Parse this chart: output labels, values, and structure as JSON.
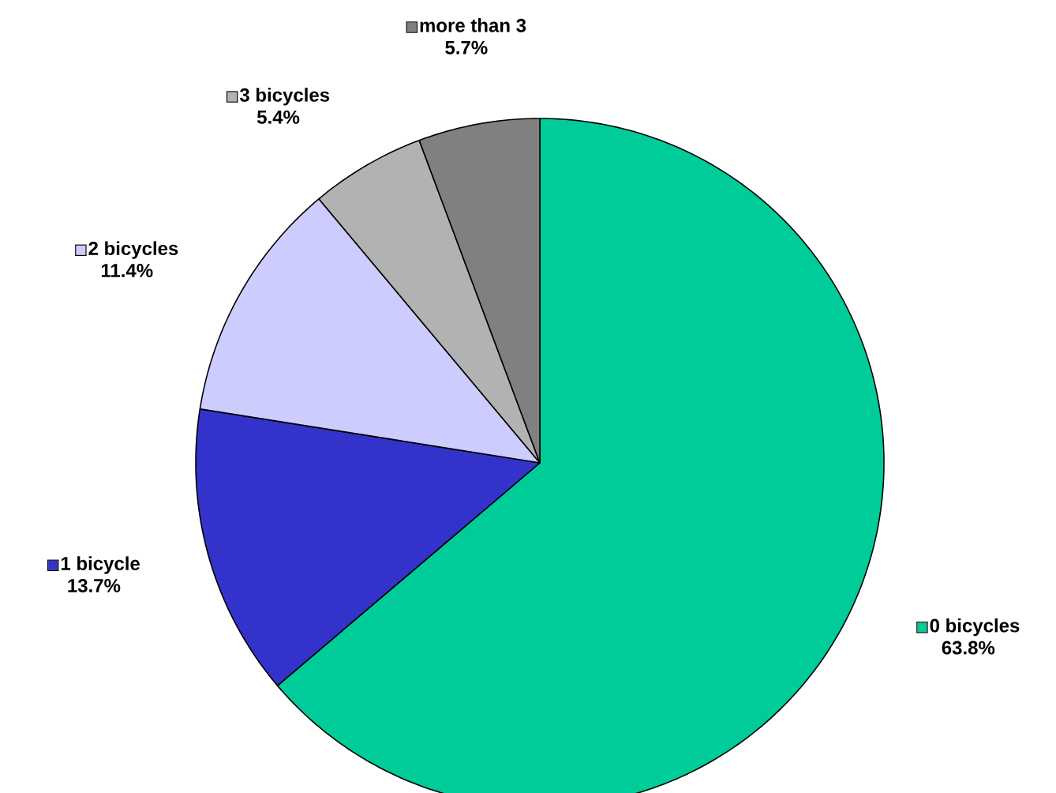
{
  "chart_data": {
    "type": "pie",
    "categories": [
      "0 bicycles",
      "1 bicycle",
      "2 bicycles",
      "3 bicycles",
      "more than 3"
    ],
    "values": [
      63.8,
      13.7,
      11.4,
      5.4,
      5.7
    ],
    "value_labels": [
      "63.8%",
      "13.7%",
      "11.4%",
      "5.4%",
      "5.7%"
    ],
    "colors": [
      "#00cc99",
      "#3333cc",
      "#ccccff",
      "#b2b2b2",
      "#808080"
    ],
    "data_labels": true,
    "legend": "top left"
  }
}
